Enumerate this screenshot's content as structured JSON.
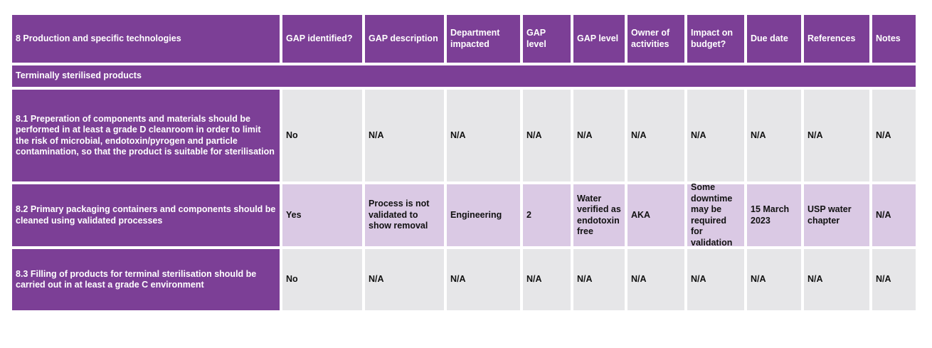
{
  "headers": [
    "8 Production and specific technologies",
    "GAP identified?",
    "GAP description",
    "Department impacted",
    "GAP level",
    "GAP level",
    "Owner of activities",
    "Impact on budget?",
    "Due date",
    "References",
    "Notes"
  ],
  "section": "Terminally sterilised products",
  "rows": [
    [
      "8.1 Preperation of components and materials should be performed in at least a grade D cleanroom in order to limit the risk of microbial, endotoxin/pyrogen and particle contamination, so that the product is suitable for sterilisation",
      "No",
      "N/A",
      "N/A",
      "N/A",
      "N/A",
      "N/A",
      "N/A",
      "N/A",
      "N/A",
      "N/A"
    ],
    [
      "8.2 Primary packaging containers and components should be cleaned using validated processes",
      "Yes",
      "Process is not validated to show removal",
      "Engineering",
      "2",
      "Water verified as endotoxin free",
      "AKA",
      "Some downtime may be required for validation",
      "15 March 2023",
      "USP water chapter",
      "N/A"
    ],
    [
      "8.3 Filling of products for terminal sterilisation should be carried out in at least a grade C environment",
      "No",
      "N/A",
      "N/A",
      "N/A",
      "N/A",
      "N/A",
      "N/A",
      "N/A",
      "N/A",
      "N/A"
    ]
  ],
  "colors": {
    "header": "#7c3f96",
    "cell_grey": "#e6e6e8",
    "cell_highlight": "#dac9e4"
  }
}
